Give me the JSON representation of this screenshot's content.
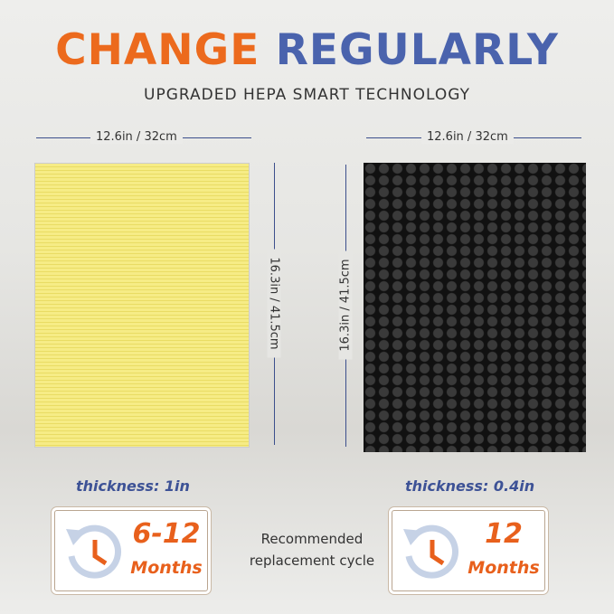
{
  "title": {
    "part1": "CHANGE",
    "part2": "REGULARLY"
  },
  "subtitle": "UPGRADED HEPA SMART TECHNOLOGY",
  "left_filter": {
    "width": "12.6in / 32cm",
    "height": "16.3in / 41.5cm",
    "thickness": "thickness: 1in",
    "cycle_value": "6-12",
    "cycle_unit": "Months"
  },
  "right_filter": {
    "width": "12.6in / 32cm",
    "height": "16.3in / 41.5cm",
    "thickness": "thickness: 0.4in",
    "cycle_value": "12",
    "cycle_unit": "Months"
  },
  "recommended": {
    "line1": "Recommended",
    "line2": "replacement cycle"
  },
  "colors": {
    "orange": "#ec6a1d",
    "blue": "#4a63ad"
  }
}
